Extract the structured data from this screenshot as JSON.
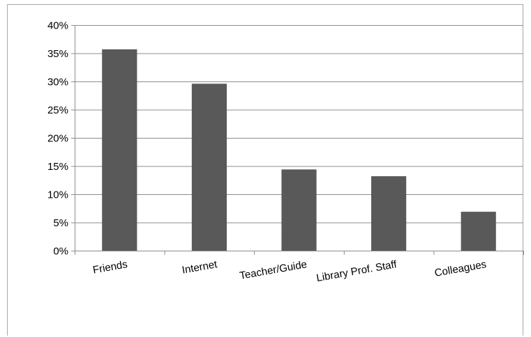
{
  "chart_data": {
    "type": "bar",
    "title": "",
    "xlabel": "",
    "ylabel": "",
    "categories": [
      "Friends",
      "Internet",
      "Teacher/Guide",
      "Library Prof. Staff",
      "Colleagues"
    ],
    "values": [
      35.7,
      29.6,
      14.4,
      13.2,
      6.9
    ],
    "ylim": [
      0,
      40
    ],
    "yticks": [
      0,
      5,
      10,
      15,
      20,
      25,
      30,
      35,
      40
    ],
    "ytick_labels": [
      "0%",
      "5%",
      "10%",
      "15%",
      "20%",
      "25%",
      "30%",
      "35%",
      "40%"
    ],
    "grid": true,
    "legend": "none",
    "bar_color": "#595959",
    "grid_color": "#8c8c8c",
    "axis_color": "#8c8c8c"
  }
}
